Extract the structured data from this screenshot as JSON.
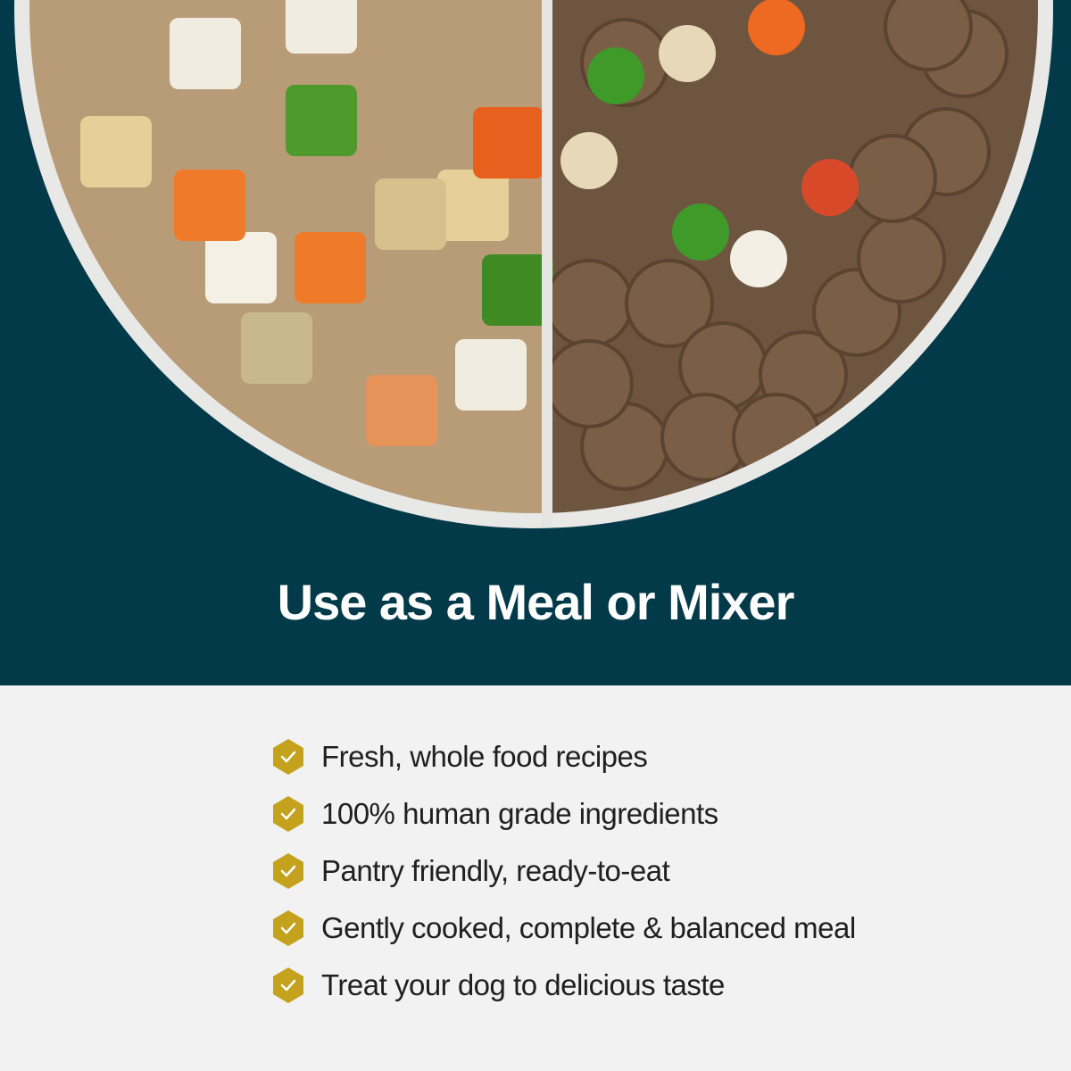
{
  "title": "Use as a Meal or Mixer",
  "colors": {
    "background": "#023a4a",
    "check_badge": "#c4a21e",
    "panel": "#f1f2f1"
  },
  "features": [
    {
      "icon": "check-hexagon-icon",
      "label": "Fresh, whole food recipes"
    },
    {
      "icon": "check-hexagon-icon",
      "label": "100% human grade ingredients"
    },
    {
      "icon": "check-hexagon-icon",
      "label": "Pantry friendly, ready-to-eat"
    },
    {
      "icon": "check-hexagon-icon",
      "label": "Gently cooked, complete & balanced meal"
    },
    {
      "icon": "check-hexagon-icon",
      "label": "Treat your dog to delicious taste"
    }
  ]
}
